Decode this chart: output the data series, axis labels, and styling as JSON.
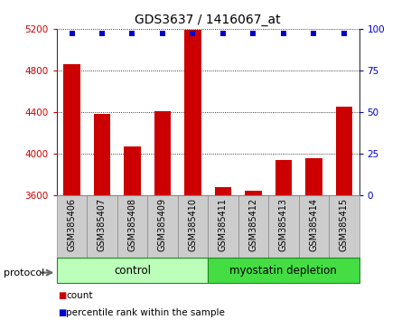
{
  "title": "GDS3637 / 1416067_at",
  "samples": [
    "GSM385406",
    "GSM385407",
    "GSM385408",
    "GSM385409",
    "GSM385410",
    "GSM385411",
    "GSM385412",
    "GSM385413",
    "GSM385414",
    "GSM385415"
  ],
  "counts": [
    4860,
    4380,
    4070,
    4410,
    5190,
    3680,
    3645,
    3940,
    3955,
    4450
  ],
  "percentile_ranks": [
    97,
    97,
    97,
    97,
    97,
    97,
    97,
    97,
    97,
    97
  ],
  "ylim_left": [
    3600,
    5200
  ],
  "ylim_right": [
    0,
    100
  ],
  "yticks_left": [
    3600,
    4000,
    4400,
    4800,
    5200
  ],
  "yticks_right": [
    0,
    25,
    50,
    75,
    100
  ],
  "bar_color": "#cc0000",
  "dot_color": "#0000cc",
  "grid_color": "#000000",
  "left_tick_color": "#cc0000",
  "right_tick_color": "#0000cc",
  "title_color": "#000000",
  "groups": [
    {
      "label": "control",
      "start": 0,
      "end": 5,
      "color": "#bbffbb",
      "edge_color": "#228822"
    },
    {
      "label": "myostatin depletion",
      "start": 5,
      "end": 10,
      "color": "#44dd44",
      "edge_color": "#228822"
    }
  ],
  "protocol_label": "protocol",
  "legend_count_label": "count",
  "legend_percentile_label": "percentile rank within the sample",
  "bar_width": 0.55,
  "figsize": [
    4.65,
    3.54
  ],
  "dpi": 100
}
